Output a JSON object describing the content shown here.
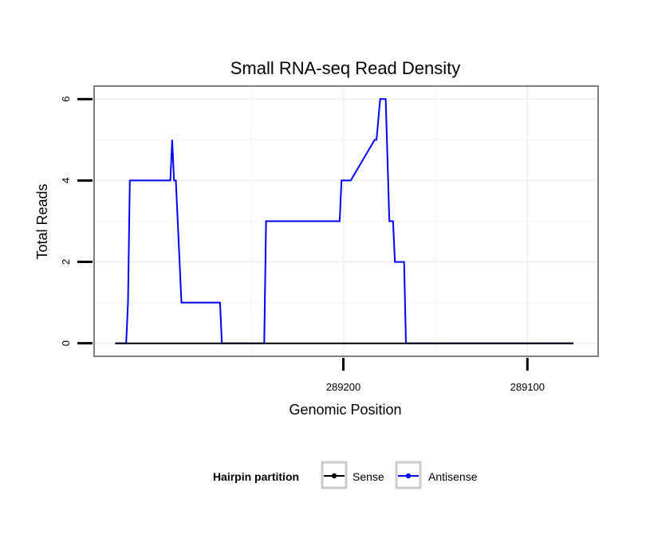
{
  "chart_data": {
    "type": "line",
    "title": "Small RNA-seq Read Density",
    "xlabel": "Genomic Position",
    "ylabel": "Total Reads",
    "x_reversed": true,
    "xlim": [
      289335,
      289062
    ],
    "ylim": [
      -0.3,
      6.3
    ],
    "x_ticks": [
      289200,
      289100
    ],
    "x_tick_labels": [
      "289200",
      "289100"
    ],
    "y_ticks": [
      0,
      2,
      4,
      6
    ],
    "y_tick_labels": [
      "0",
      "2",
      "4",
      "6"
    ],
    "grid": true,
    "legend": {
      "title": "Hairpin partition",
      "position": "bottom",
      "entries": [
        {
          "name": "Sense",
          "color": "#000000"
        },
        {
          "name": "Antisense",
          "color": "#0000ff"
        }
      ]
    },
    "series": [
      {
        "name": "Sense",
        "color": "#000000",
        "x": [
          289324,
          289075
        ],
        "y": [
          0,
          0
        ]
      },
      {
        "name": "Antisense",
        "color": "#0000ff",
        "x": [
          289324,
          289318,
          289317,
          289316,
          289294,
          289293,
          289292,
          289291,
          289288,
          289267,
          289266,
          289243,
          289242,
          289202,
          289201,
          289197,
          289196,
          289183,
          289182,
          289180,
          289179,
          289177,
          289175,
          289173,
          289172,
          289167,
          289166,
          289155,
          289154,
          289075
        ],
        "y": [
          0,
          0,
          1,
          4,
          4,
          5,
          4,
          4,
          1,
          1,
          0,
          0,
          3,
          3,
          4,
          4,
          4,
          5,
          5,
          6,
          6,
          6,
          3,
          3,
          2,
          2,
          0,
          0,
          0,
          0
        ]
      }
    ]
  }
}
